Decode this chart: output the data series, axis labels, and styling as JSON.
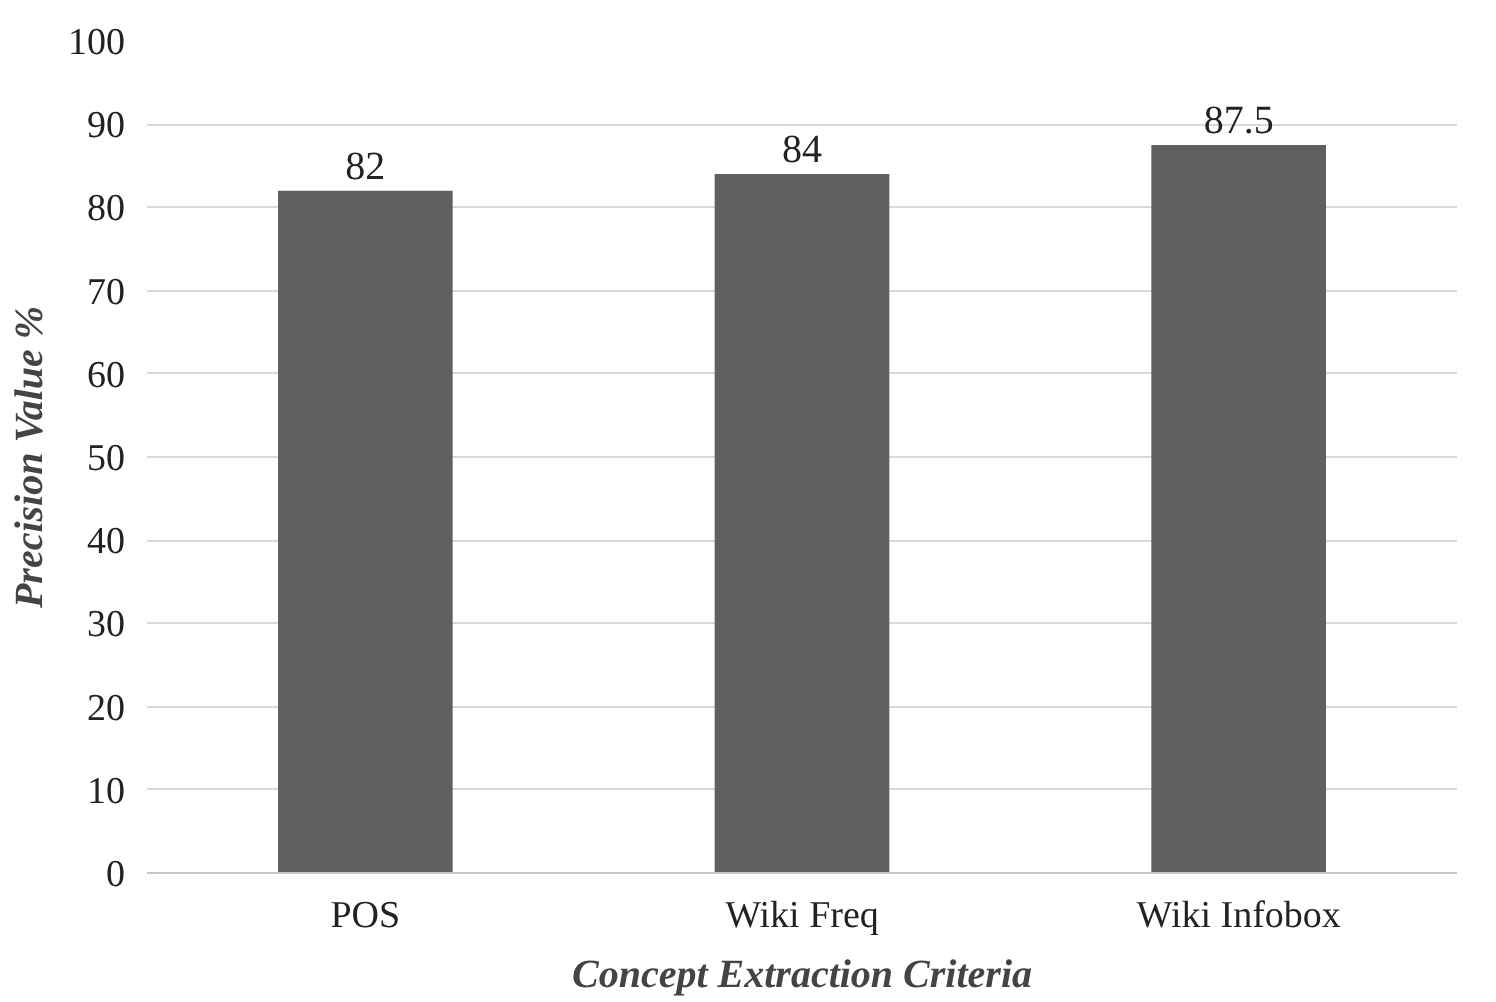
{
  "chart_data": {
    "type": "bar",
    "xlabel": "Concept Extraction Criteria",
    "ylabel": "Precision Value %",
    "categories": [
      "POS",
      "Wiki Freq",
      "Wiki Infobox"
    ],
    "values": [
      82,
      84,
      87.5
    ],
    "color": "#606060",
    "ylim": [
      0,
      100
    ],
    "yticks": [
      0,
      10,
      20,
      30,
      40,
      50,
      60,
      70,
      80,
      90,
      100
    ],
    "grid": "y",
    "data_labels": true
  }
}
